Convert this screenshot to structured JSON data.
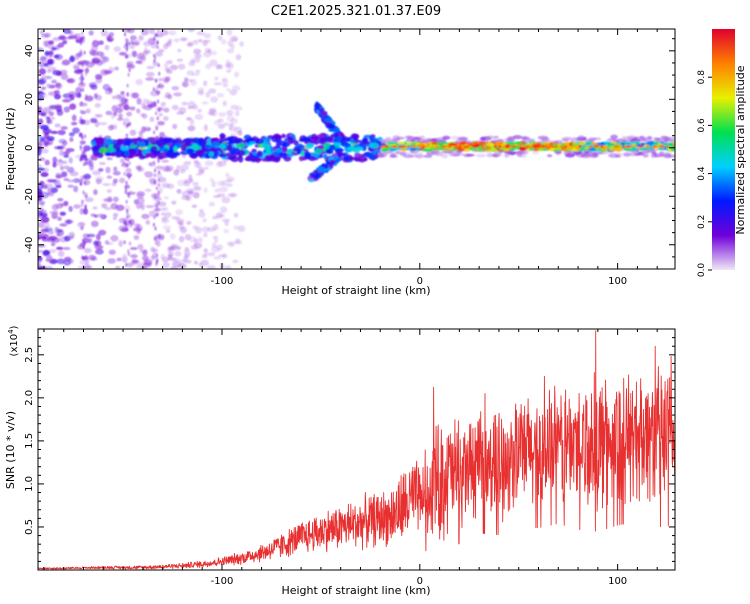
{
  "figure_title": "C2E1.2025.321.01.37.E09",
  "chart_data": [
    {
      "type": "heatmap",
      "title": "C2E1.2025.321.01.37.E09",
      "xlabel": "Height of straight line (km)",
      "ylabel": "Frequency (Hz)",
      "xlim": [
        -193,
        129
      ],
      "ylim": [
        -50,
        49
      ],
      "xticks": [
        -100,
        0,
        100
      ],
      "yticks": [
        -40,
        -20,
        0,
        20,
        40
      ],
      "xtick_labels": [
        "-100",
        "0",
        "100"
      ],
      "ytick_labels": [
        "-40",
        "-20",
        "0",
        "20",
        "40"
      ],
      "colorbar": {
        "label": "Normalized spectral amplitude",
        "range": [
          0,
          1
        ],
        "ticks": [
          0.0,
          0.2,
          0.4,
          0.6,
          0.8
        ],
        "tick_labels": [
          "0.0",
          "0.2",
          "0.4",
          "0.6",
          "0.8"
        ],
        "colors": [
          "#f0e8f8",
          "#7000d8",
          "#0018ff",
          "#00d0ff",
          "#00e050",
          "#e8f000",
          "#ff8000",
          "#e00030"
        ]
      },
      "features": [
        {
          "name": "noise band",
          "x_range": [
            -193,
            -120
          ],
          "freq_range": [
            -50,
            49
          ],
          "amplitude": 0.15
        },
        {
          "name": "main line",
          "x_range": [
            -165,
            -20
          ],
          "freq_center": 0,
          "amplitude": 0.45
        },
        {
          "name": "upper branch",
          "x_range": [
            -52,
            -40
          ],
          "freq_range": [
            4,
            17
          ],
          "amplitude": 0.3
        },
        {
          "name": "lower branch",
          "x_range": [
            -55,
            -40
          ],
          "freq_range": [
            -13,
            -3
          ],
          "amplitude": 0.35
        },
        {
          "name": "steady line",
          "x_range": [
            -20,
            129
          ],
          "freq_center": 0.5,
          "amplitude": 0.95
        }
      ]
    },
    {
      "type": "line",
      "xlabel": "Height of straight line (km)",
      "ylabel": "SNR (10 * v/v)",
      "y_scale_label": "(x10",
      "y_scale_exponent": "4",
      "y_scale_close": ")",
      "xlim": [
        -193,
        129
      ],
      "ylim": [
        0,
        2.8
      ],
      "xticks": [
        -100,
        0,
        100
      ],
      "yticks": [
        0.5,
        1.0,
        1.5,
        2.0,
        2.5
      ],
      "xtick_labels": [
        "-100",
        "0",
        "100"
      ],
      "ytick_labels": [
        "0.5",
        "1.0",
        "1.5",
        "2.0",
        "2.5"
      ],
      "color": "#e83030",
      "series": [
        {
          "name": "SNR",
          "x": [
            -193,
            -180,
            -160,
            -140,
            -120,
            -110,
            -100,
            -90,
            -80,
            -70,
            -60,
            -50,
            -40,
            -30,
            -20,
            -15,
            -10,
            -5,
            0,
            5,
            10,
            20,
            30,
            40,
            50,
            60,
            70,
            80,
            90,
            100,
            110,
            120,
            129
          ],
          "mean": [
            0.02,
            0.02,
            0.03,
            0.03,
            0.05,
            0.07,
            0.1,
            0.14,
            0.2,
            0.28,
            0.38,
            0.45,
            0.5,
            0.55,
            0.6,
            0.62,
            0.7,
            0.8,
            0.85,
            0.95,
            1.05,
            1.15,
            1.2,
            1.25,
            1.35,
            1.4,
            1.45,
            1.45,
            1.5,
            1.5,
            1.55,
            1.55,
            1.5
          ],
          "spread": [
            0.01,
            0.01,
            0.015,
            0.02,
            0.03,
            0.04,
            0.05,
            0.07,
            0.1,
            0.14,
            0.18,
            0.22,
            0.25,
            0.28,
            0.3,
            0.32,
            0.4,
            0.45,
            0.4,
            0.55,
            0.7,
            0.6,
            0.55,
            0.6,
            0.6,
            0.65,
            0.65,
            0.7,
            0.75,
            0.7,
            0.7,
            0.75,
            0.7
          ],
          "peaks": [
            {
              "x": 7,
              "y": 2.12
            },
            {
              "x": 33,
              "y": 2.05
            },
            {
              "x": 63,
              "y": 2.25
            },
            {
              "x": 89,
              "y": 2.78
            },
            {
              "x": 112,
              "y": 2.08
            },
            {
              "x": 119,
              "y": 2.6
            },
            {
              "x": 127,
              "y": 2.48
            }
          ]
        }
      ]
    }
  ]
}
